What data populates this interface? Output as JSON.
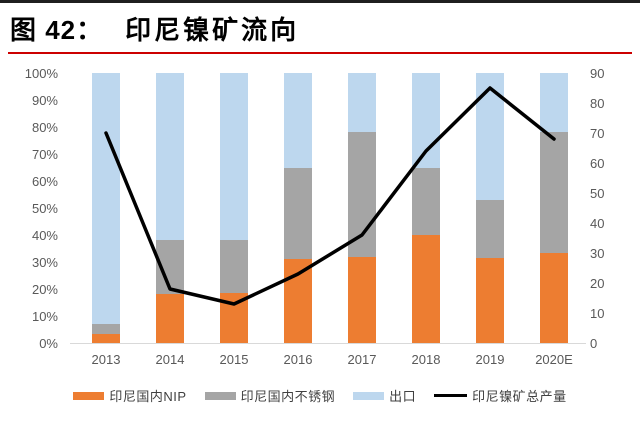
{
  "header": {
    "figure_label": "图 42：",
    "figure_title": "印尼镍矿流向"
  },
  "chart_data": {
    "type": "bar",
    "subtype": "stacked-percent-bars-with-line-overlay",
    "title": "印尼镍矿流向",
    "categories": [
      "2013",
      "2014",
      "2015",
      "2016",
      "2017",
      "2018",
      "2019",
      "2020E"
    ],
    "series": [
      {
        "name": "印尼国内NIP",
        "kind": "bar",
        "color": "#ED7D31",
        "axis": "left",
        "unit": "%",
        "values": [
          3.5,
          18,
          18.5,
          31,
          32,
          40,
          31.5,
          33.5
        ]
      },
      {
        "name": "印尼国内不锈钢",
        "kind": "bar",
        "color": "#A5A5A5",
        "axis": "left",
        "unit": "%",
        "values": [
          3.5,
          20,
          19.5,
          34,
          46,
          25,
          21.5,
          44.5
        ]
      },
      {
        "name": "出口",
        "kind": "bar",
        "color": "#BDD7EE",
        "axis": "left",
        "unit": "%",
        "values": [
          93,
          62,
          62,
          35,
          22,
          35,
          47,
          22
        ]
      },
      {
        "name": "印尼镍矿总产量",
        "kind": "line",
        "color": "#000000",
        "axis": "right",
        "values": [
          70,
          18,
          13,
          23,
          36,
          64,
          85,
          68
        ]
      }
    ],
    "left_axis": {
      "min": 0,
      "max": 100,
      "ticks": [
        "100%",
        "90%",
        "80%",
        "70%",
        "60%",
        "50%",
        "40%",
        "30%",
        "20%",
        "10%",
        "0%"
      ]
    },
    "right_axis": {
      "min": 0,
      "max": 90,
      "ticks": [
        "90",
        "80",
        "70",
        "60",
        "50",
        "40",
        "30",
        "20",
        "10",
        "0"
      ]
    },
    "legend_position": "bottom",
    "grid": false,
    "colors": {
      "axis_text": "#595959",
      "baseline": "#D9D9D9",
      "title_underline": "#CC0000",
      "top_rule": "#1F1F1F"
    }
  }
}
